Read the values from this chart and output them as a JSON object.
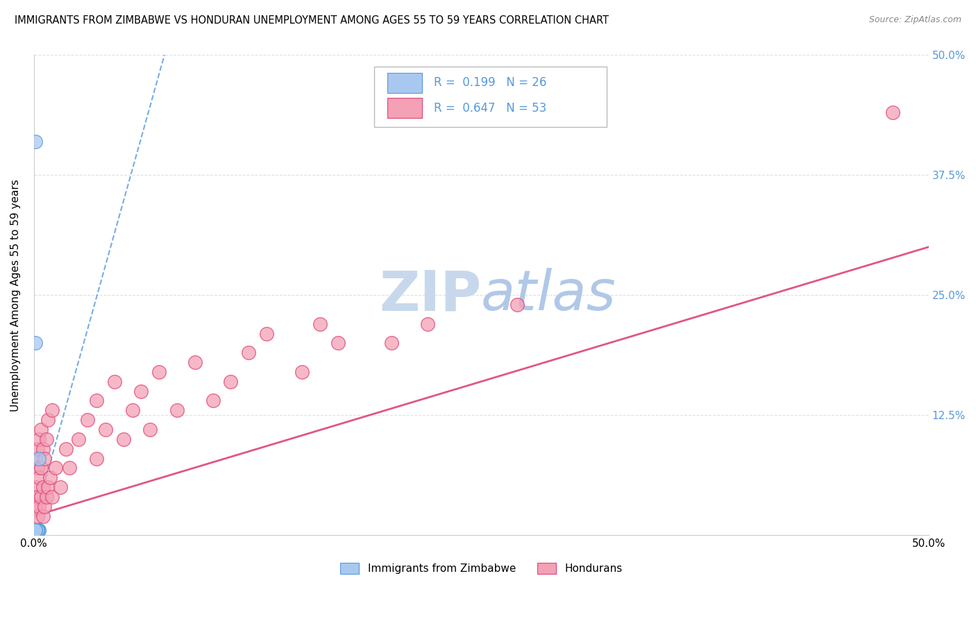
{
  "title": "IMMIGRANTS FROM ZIMBABWE VS HONDURAN UNEMPLOYMENT AMONG AGES 55 TO 59 YEARS CORRELATION CHART",
  "source": "Source: ZipAtlas.com",
  "ylabel": "Unemployment Among Ages 55 to 59 years",
  "legend_label1": "Immigrants from Zimbabwe",
  "legend_label2": "Hondurans",
  "R1": 0.199,
  "N1": 26,
  "R2": 0.647,
  "N2": 53,
  "xlim": [
    0.0,
    0.5
  ],
  "ylim": [
    0.0,
    0.5
  ],
  "color_blue": "#a8c8f0",
  "color_blue_dark": "#5599dd",
  "color_pink": "#f4a0b5",
  "color_pink_dark": "#dd4477",
  "watermark_color": "#dde8f5",
  "background_color": "#ffffff",
  "grid_color": "#dddddd",
  "zimbabwe_x": [
    0.001,
    0.002,
    0.0015,
    0.001,
    0.002,
    0.0025,
    0.001,
    0.003,
    0.002,
    0.001,
    0.0015,
    0.002,
    0.001,
    0.003,
    0.002,
    0.0015,
    0.001,
    0.002,
    0.0015,
    0.001,
    0.0015,
    0.001,
    0.002,
    0.001,
    0.003,
    0.001
  ],
  "zimbabwe_y": [
    0.41,
    0.005,
    0.005,
    0.005,
    0.005,
    0.005,
    0.005,
    0.005,
    0.005,
    0.005,
    0.005,
    0.005,
    0.005,
    0.005,
    0.005,
    0.005,
    0.2,
    0.005,
    0.005,
    0.005,
    0.005,
    0.005,
    0.005,
    0.005,
    0.08,
    0.005
  ],
  "hondurans_x": [
    0.001,
    0.001,
    0.001,
    0.002,
    0.002,
    0.002,
    0.002,
    0.003,
    0.003,
    0.003,
    0.004,
    0.004,
    0.004,
    0.005,
    0.005,
    0.005,
    0.006,
    0.006,
    0.007,
    0.007,
    0.008,
    0.008,
    0.009,
    0.01,
    0.01,
    0.012,
    0.015,
    0.018,
    0.02,
    0.025,
    0.03,
    0.035,
    0.035,
    0.04,
    0.045,
    0.05,
    0.055,
    0.06,
    0.065,
    0.07,
    0.08,
    0.09,
    0.1,
    0.11,
    0.12,
    0.13,
    0.15,
    0.16,
    0.17,
    0.2,
    0.22,
    0.27,
    0.48
  ],
  "hondurans_y": [
    0.03,
    0.05,
    0.08,
    0.02,
    0.04,
    0.07,
    0.09,
    0.03,
    0.06,
    0.1,
    0.04,
    0.07,
    0.11,
    0.02,
    0.05,
    0.09,
    0.03,
    0.08,
    0.04,
    0.1,
    0.05,
    0.12,
    0.06,
    0.04,
    0.13,
    0.07,
    0.05,
    0.09,
    0.07,
    0.1,
    0.12,
    0.14,
    0.08,
    0.11,
    0.16,
    0.1,
    0.13,
    0.15,
    0.11,
    0.17,
    0.13,
    0.18,
    0.14,
    0.16,
    0.19,
    0.21,
    0.17,
    0.22,
    0.2,
    0.2,
    0.22,
    0.24,
    0.44
  ],
  "pink_line_x": [
    0.0,
    0.5
  ],
  "pink_line_y": [
    0.02,
    0.3
  ],
  "blue_line_x": [
    0.0,
    0.073
  ],
  "blue_line_y": [
    0.015,
    0.5
  ]
}
